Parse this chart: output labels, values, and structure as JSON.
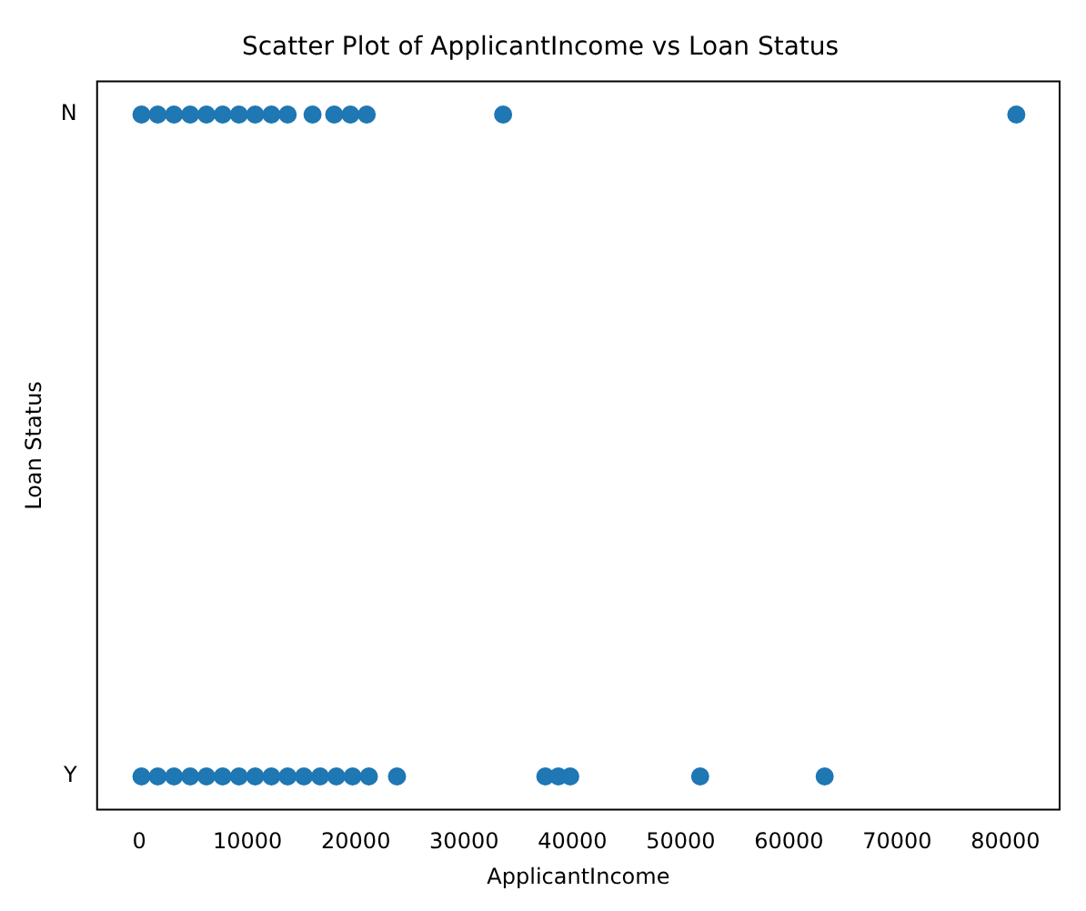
{
  "chart_data": {
    "type": "scatter",
    "orientation": "horizontal",
    "title": "Scatter Plot of ApplicantIncome vs Loan Status",
    "xlabel": "ApplicantIncome",
    "ylabel": "Loan Status",
    "xlim": [
      -3900,
      85000
    ],
    "xticks": [
      0,
      10000,
      20000,
      30000,
      40000,
      50000,
      60000,
      70000,
      80000
    ],
    "categories": [
      "N",
      "Y"
    ],
    "grid": false,
    "marker": "circle",
    "legend": false,
    "series": [
      {
        "color": "#1f77b4",
        "x": [
          "N",
          "N",
          "N",
          "N",
          "N",
          "N",
          "N",
          "N",
          "N",
          "N",
          "N",
          "N",
          "N",
          "N",
          "N",
          "N"
        ],
        "values": [
          200,
          1700,
          3200,
          4700,
          6200,
          7700,
          9200,
          10700,
          12200,
          13700,
          16000,
          18000,
          19500,
          21000,
          33600,
          81000
        ]
      },
      {
        "color": "#1f77b4",
        "x": [
          "Y",
          "Y",
          "Y",
          "Y",
          "Y",
          "Y",
          "Y",
          "Y",
          "Y",
          "Y",
          "Y",
          "Y",
          "Y",
          "Y",
          "Y",
          "Y",
          "Y",
          "Y",
          "Y",
          "Y",
          "Y"
        ],
        "values": [
          200,
          1700,
          3200,
          4700,
          6200,
          7700,
          9200,
          10700,
          12200,
          13700,
          15200,
          16700,
          18200,
          19700,
          21200,
          23800,
          37500,
          38700,
          39800,
          51800,
          63300
        ]
      }
    ]
  }
}
